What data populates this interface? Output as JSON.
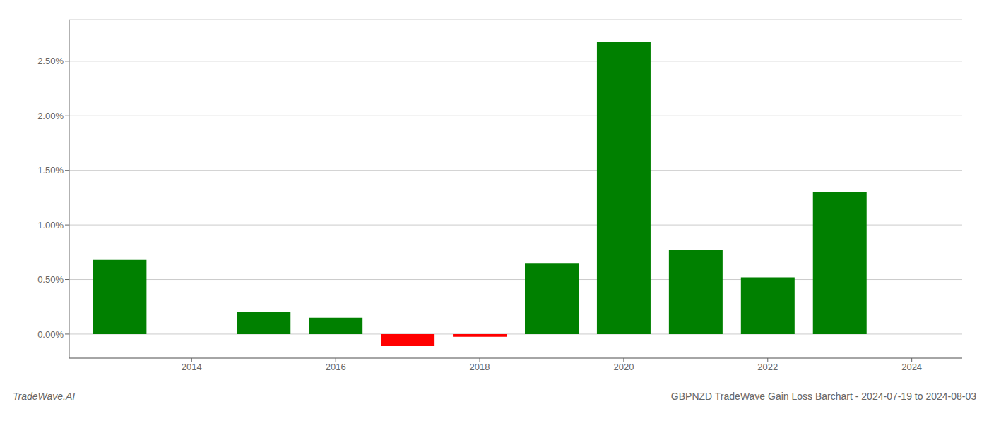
{
  "chart_data": {
    "type": "bar",
    "title": "GBPNZD TradeWave Gain Loss Barchart - 2024-07-19 to 2024-08-03",
    "annotations": [
      "TradeWave.AI"
    ],
    "x": [
      2013,
      2015,
      2016,
      2017,
      2018,
      2019,
      2020,
      2021,
      2022,
      2023
    ],
    "values": [
      0.0068,
      0.002,
      0.0015,
      -0.0011,
      -0.00025,
      0.0065,
      0.0268,
      0.0077,
      0.0052,
      0.013
    ],
    "colors": [
      "#008000",
      "#008000",
      "#008000",
      "#ff0000",
      "#ff0000",
      "#008000",
      "#008000",
      "#008000",
      "#008000",
      "#008000"
    ],
    "xlim": [
      2012.3,
      2024.7
    ],
    "xticks": [
      2014,
      2016,
      2018,
      2020,
      2022,
      2024
    ],
    "ylim": [
      -0.0022,
      0.0288
    ],
    "yticks": [
      {
        "value": 0.0,
        "label": "0.00%"
      },
      {
        "value": 0.005,
        "label": "0.50%"
      },
      {
        "value": 0.01,
        "label": "1.00%"
      },
      {
        "value": 0.015,
        "label": "1.50%"
      },
      {
        "value": 0.02,
        "label": "2.00%"
      },
      {
        "value": 0.025,
        "label": "2.50%"
      }
    ],
    "grid": true
  }
}
